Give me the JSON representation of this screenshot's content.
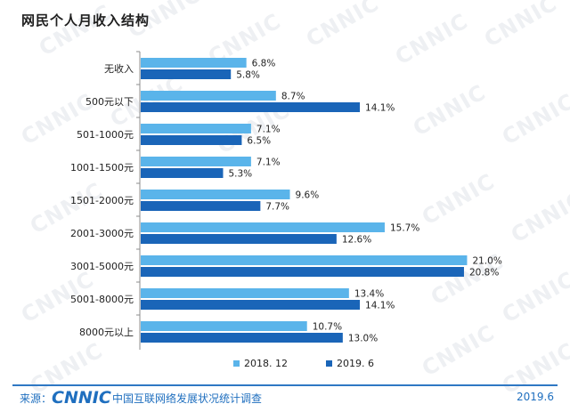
{
  "title": "网民个人月收入结构",
  "colors": {
    "series_2018": "#5ab4ea",
    "series_2019": "#1a65b8",
    "axis": "#8c8c8c",
    "footer": "#1f6fbf"
  },
  "footer": {
    "source_label": "来源：",
    "logo_text": "CNNIC",
    "org_name": "中国互联网络发展状况统计调查",
    "date": "2019.6"
  },
  "watermark_text": "CNNIC",
  "chart_data": {
    "type": "bar",
    "orientation": "horizontal",
    "title": "网民个人月收入结构",
    "categories": [
      "无收入",
      "500元以下",
      "501-1000元",
      "1001-1500元",
      "1501-2000元",
      "2001-3000元",
      "3001-5000元",
      "5001-8000元",
      "8000元以上"
    ],
    "series": [
      {
        "name": "2018. 12",
        "values": [
          6.8,
          8.7,
          7.1,
          7.1,
          9.6,
          15.7,
          21.0,
          13.4,
          10.7
        ],
        "labels": [
          "6.8%",
          "8.7%",
          "7.1%",
          "7.1%",
          "9.6%",
          "15.7%",
          "21.0%",
          "13.4%",
          "10.7%"
        ]
      },
      {
        "name": "2019. 6",
        "values": [
          5.8,
          14.1,
          6.5,
          5.3,
          7.7,
          12.6,
          20.8,
          14.1,
          13.0
        ],
        "labels": [
          "5.8%",
          "14.1%",
          "6.5%",
          "5.3%",
          "7.7%",
          "12.6%",
          "20.8%",
          "14.1%",
          "13.0%"
        ]
      }
    ],
    "xlim": [
      0,
      25
    ],
    "grid": false,
    "legend_position": "bottom-center"
  }
}
